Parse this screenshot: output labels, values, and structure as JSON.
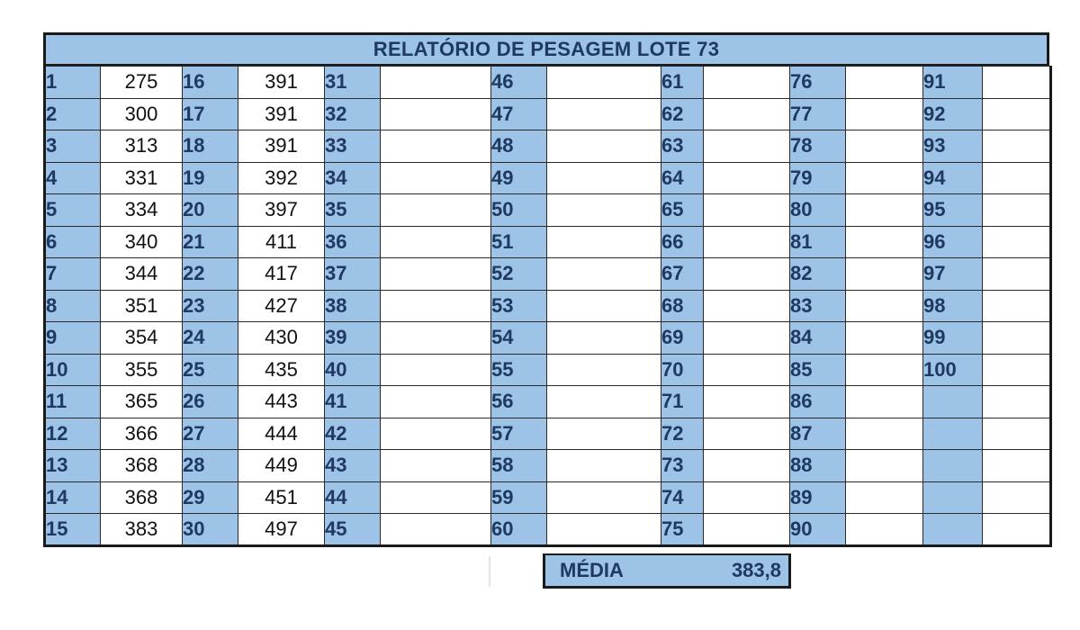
{
  "title": "RELATÓRIO DE PESAGEM LOTE 73",
  "columns": [
    {
      "numbers": [
        "1",
        "2",
        "3",
        "4",
        "5",
        "6",
        "7",
        "8",
        "9",
        "10",
        "11",
        "12",
        "13",
        "14",
        "15"
      ],
      "values": [
        "275",
        "300",
        "313",
        "331",
        "334",
        "340",
        "344",
        "351",
        "354",
        "355",
        "365",
        "366",
        "368",
        "368",
        "383"
      ]
    },
    {
      "numbers": [
        "16",
        "17",
        "18",
        "19",
        "20",
        "21",
        "22",
        "23",
        "24",
        "25",
        "26",
        "27",
        "28",
        "29",
        "30"
      ],
      "values": [
        "391",
        "391",
        "391",
        "392",
        "397",
        "411",
        "417",
        "427",
        "430",
        "435",
        "443",
        "444",
        "449",
        "451",
        "497"
      ]
    },
    {
      "numbers": [
        "31",
        "32",
        "33",
        "34",
        "35",
        "36",
        "37",
        "38",
        "39",
        "40",
        "41",
        "42",
        "43",
        "44",
        "45"
      ],
      "values": [
        "",
        "",
        "",
        "",
        "",
        "",
        "",
        "",
        "",
        "",
        "",
        "",
        "",
        "",
        ""
      ]
    },
    {
      "numbers": [
        "46",
        "47",
        "48",
        "49",
        "50",
        "51",
        "52",
        "53",
        "54",
        "55",
        "56",
        "57",
        "58",
        "59",
        "60"
      ],
      "values": [
        "",
        "",
        "",
        "",
        "",
        "",
        "",
        "",
        "",
        "",
        "",
        "",
        "",
        "",
        ""
      ]
    },
    {
      "numbers": [
        "61",
        "62",
        "63",
        "64",
        "65",
        "66",
        "67",
        "68",
        "69",
        "70",
        "71",
        "72",
        "73",
        "74",
        "75"
      ],
      "values": [
        "",
        "",
        "",
        "",
        "",
        "",
        "",
        "",
        "",
        "",
        "",
        "",
        "",
        "",
        ""
      ]
    },
    {
      "numbers": [
        "76",
        "77",
        "78",
        "79",
        "80",
        "81",
        "82",
        "83",
        "84",
        "85",
        "86",
        "87",
        "88",
        "89",
        "90"
      ],
      "values": [
        "",
        "",
        "",
        "",
        "",
        "",
        "",
        "",
        "",
        "",
        "",
        "",
        "",
        "",
        ""
      ]
    },
    {
      "numbers": [
        "91",
        "92",
        "93",
        "94",
        "95",
        "96",
        "97",
        "98",
        "99",
        "100",
        "",
        "",
        "",
        "",
        ""
      ],
      "values": [
        "",
        "",
        "",
        "",
        "",
        "",
        "",
        "",
        "",
        "",
        "",
        "",
        "",
        "",
        ""
      ]
    }
  ],
  "media": {
    "label": "MÉDIA",
    "value": "383,8"
  }
}
